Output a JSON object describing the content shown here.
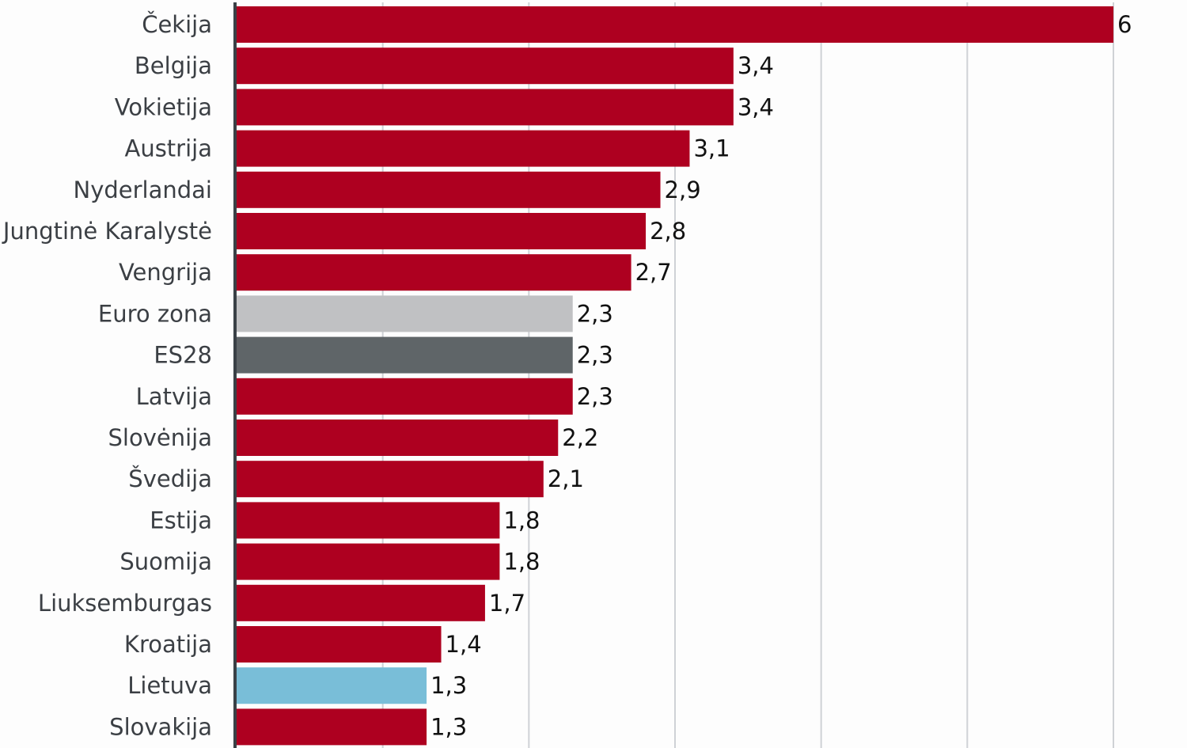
{
  "chart_data": {
    "type": "bar",
    "orientation": "horizontal",
    "categories": [
      "Čekija",
      "Belgija",
      "Vokietija",
      "Austrija",
      "Nyderlandai",
      "Jungtinė Karalystė",
      "Vengrija",
      "Euro zona",
      "ES28",
      "Latvija",
      "Slovėnija",
      "Švedija",
      "Estija",
      "Suomija",
      "Liuksemburgas",
      "Kroatija",
      "Lietuva",
      "Slovakija"
    ],
    "values": [
      6,
      3.4,
      3.4,
      3.1,
      2.9,
      2.8,
      2.7,
      2.3,
      2.3,
      2.3,
      2.2,
      2.1,
      1.8,
      1.8,
      1.7,
      1.4,
      1.3,
      1.3
    ],
    "value_labels": [
      "6",
      "3,4",
      "3,4",
      "3,1",
      "2,9",
      "2,8",
      "2,7",
      "2,3",
      "2,3",
      "2,3",
      "2,2",
      "2,1",
      "1,8",
      "1,8",
      "1,7",
      "1,4",
      "1,3",
      "1,3"
    ],
    "bar_colors": [
      "#ae0020",
      "#ae0020",
      "#ae0020",
      "#ae0020",
      "#ae0020",
      "#ae0020",
      "#ae0020",
      "#c0c1c3",
      "#5f6568",
      "#ae0020",
      "#ae0020",
      "#ae0020",
      "#ae0020",
      "#ae0020",
      "#ae0020",
      "#ae0020",
      "#79bed8",
      "#ae0020"
    ],
    "xlim": [
      0,
      6
    ],
    "grid": true,
    "title": "",
    "xlabel": "",
    "ylabel": ""
  }
}
